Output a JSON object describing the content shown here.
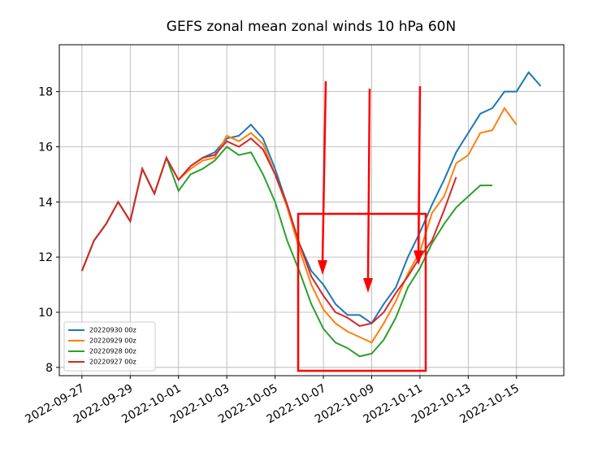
{
  "chart_data": {
    "type": "line",
    "title": "GEFS zonal mean zonal winds 10 hPa 60N",
    "x": [
      "2022-09-27T00:00Z",
      "2022-09-27T12:00Z",
      "2022-09-28T00:00Z",
      "2022-09-28T12:00Z",
      "2022-09-29T00:00Z",
      "2022-09-29T12:00Z",
      "2022-09-30T00:00Z",
      "2022-09-30T12:00Z",
      "2022-10-01T00:00Z",
      "2022-10-01T12:00Z",
      "2022-10-02T00:00Z",
      "2022-10-02T12:00Z",
      "2022-10-03T00:00Z",
      "2022-10-03T12:00Z",
      "2022-10-04T00:00Z",
      "2022-10-04T12:00Z",
      "2022-10-05T00:00Z",
      "2022-10-05T12:00Z",
      "2022-10-06T00:00Z",
      "2022-10-06T12:00Z",
      "2022-10-07T00:00Z",
      "2022-10-07T12:00Z",
      "2022-10-08T00:00Z",
      "2022-10-08T12:00Z",
      "2022-10-09T00:00Z",
      "2022-10-09T12:00Z",
      "2022-10-10T00:00Z",
      "2022-10-10T12:00Z",
      "2022-10-11T00:00Z",
      "2022-10-11T12:00Z",
      "2022-10-12T00:00Z",
      "2022-10-12T12:00Z",
      "2022-10-13T00:00Z",
      "2022-10-13T12:00Z",
      "2022-10-14T00:00Z",
      "2022-10-14T12:00Z",
      "2022-10-15T00:00Z",
      "2022-10-15T12:00Z",
      "2022-10-16T00:00Z"
    ],
    "series": [
      {
        "name": "20220930 00z",
        "color": "#1f77b4",
        "values": [
          11.5,
          12.6,
          13.2,
          14.0,
          13.3,
          15.2,
          14.3,
          15.6,
          14.8,
          15.3,
          15.6,
          15.8,
          16.3,
          16.4,
          16.8,
          16.3,
          15.2,
          13.9,
          12.5,
          11.5,
          11.0,
          10.3,
          9.9,
          9.9,
          9.6,
          10.3,
          10.9,
          12.0,
          12.9,
          13.9,
          14.8,
          15.8,
          16.5,
          17.2,
          17.4,
          18.0,
          18.0,
          18.7,
          18.2
        ]
      },
      {
        "name": "20220929 00z",
        "color": "#ff7f0e",
        "values": [
          11.5,
          12.6,
          13.2,
          14.0,
          13.3,
          15.2,
          14.3,
          15.6,
          14.8,
          15.2,
          15.5,
          15.6,
          16.4,
          16.2,
          16.5,
          16.1,
          15.0,
          13.8,
          12.3,
          11.0,
          10.1,
          9.6,
          9.3,
          9.1,
          8.9,
          9.6,
          10.4,
          11.4,
          12.2,
          13.6,
          14.2,
          15.4,
          15.7,
          16.5,
          16.6,
          17.4,
          16.8,
          null,
          null
        ]
      },
      {
        "name": "20220928 00z",
        "color": "#2ca02c",
        "values": [
          11.5,
          12.6,
          13.2,
          14.0,
          13.3,
          15.2,
          14.3,
          15.6,
          14.4,
          15.0,
          15.2,
          15.5,
          16.0,
          15.7,
          15.8,
          15.0,
          14.0,
          12.6,
          11.5,
          10.3,
          9.4,
          8.9,
          8.7,
          8.4,
          8.5,
          9.0,
          9.8,
          10.9,
          11.6,
          12.5,
          13.2,
          13.8,
          14.2,
          14.6,
          14.6,
          null,
          null,
          null,
          null
        ]
      },
      {
        "name": "20220927 00z",
        "color": "#d62728",
        "values": [
          11.5,
          12.6,
          13.2,
          14.0,
          13.3,
          15.2,
          14.3,
          15.6,
          14.8,
          15.3,
          15.6,
          15.7,
          16.2,
          16.0,
          16.3,
          15.9,
          15.0,
          13.9,
          12.5,
          11.3,
          10.6,
          10.0,
          9.8,
          9.5,
          9.6,
          10.0,
          10.7,
          11.3,
          12.0,
          12.6,
          13.7,
          14.9,
          null,
          null,
          null,
          null,
          null,
          null,
          null
        ]
      }
    ],
    "xlim": [
      "2022-09-26T01:30Z",
      "2022-10-16T23:00Z"
    ],
    "xticks": [
      "2022-09-27",
      "2022-09-29",
      "2022-10-01",
      "2022-10-03",
      "2022-10-05",
      "2022-10-07",
      "2022-10-09",
      "2022-10-11",
      "2022-10-13",
      "2022-10-15"
    ],
    "ylim": [
      7.7,
      19.7
    ],
    "yticks": [
      8,
      10,
      12,
      14,
      16,
      18
    ],
    "grid": true,
    "legend": "lower left"
  }
}
